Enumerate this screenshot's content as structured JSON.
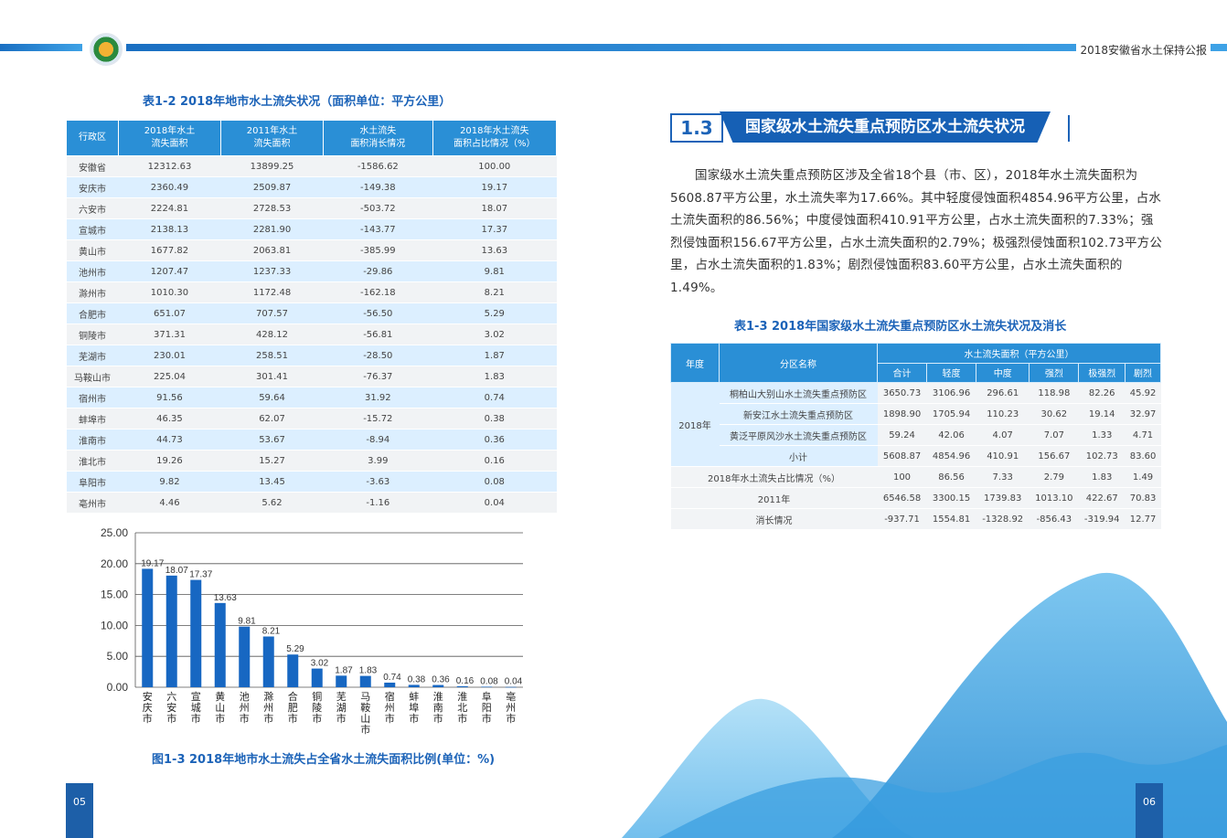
{
  "header": {
    "title": "2018安徽省水土保持公报"
  },
  "pages": {
    "left": "05",
    "right": "06"
  },
  "table_1_2": {
    "caption": "表1-2  2018年地市水土流失状况（面积单位：平方公里）",
    "headers": [
      "行政区",
      "2018年水土\n流失面积",
      "2011年水土\n流失面积",
      "水土流失\n面积消长情况",
      "2018年水土流失\n面积占比情况（%）"
    ],
    "rows": [
      [
        "安徽省",
        "12312.63",
        "13899.25",
        "-1586.62",
        "100.00"
      ],
      [
        "安庆市",
        "2360.49",
        "2509.87",
        "-149.38",
        "19.17"
      ],
      [
        "六安市",
        "2224.81",
        "2728.53",
        "-503.72",
        "18.07"
      ],
      [
        "宣城市",
        "2138.13",
        "2281.90",
        "-143.77",
        "17.37"
      ],
      [
        "黄山市",
        "1677.82",
        "2063.81",
        "-385.99",
        "13.63"
      ],
      [
        "池州市",
        "1207.47",
        "1237.33",
        "-29.86",
        "9.81"
      ],
      [
        "滁州市",
        "1010.30",
        "1172.48",
        "-162.18",
        "8.21"
      ],
      [
        "合肥市",
        "651.07",
        "707.57",
        "-56.50",
        "5.29"
      ],
      [
        "铜陵市",
        "371.31",
        "428.12",
        "-56.81",
        "3.02"
      ],
      [
        "芜湖市",
        "230.01",
        "258.51",
        "-28.50",
        "1.87"
      ],
      [
        "马鞍山市",
        "225.04",
        "301.41",
        "-76.37",
        "1.83"
      ],
      [
        "宿州市",
        "91.56",
        "59.64",
        "31.92",
        "0.74"
      ],
      [
        "蚌埠市",
        "46.35",
        "62.07",
        "-15.72",
        "0.38"
      ],
      [
        "淮南市",
        "44.73",
        "53.67",
        "-8.94",
        "0.36"
      ],
      [
        "淮北市",
        "19.26",
        "15.27",
        "3.99",
        "0.16"
      ],
      [
        "阜阳市",
        "9.82",
        "13.45",
        "-3.63",
        "0.08"
      ],
      [
        "亳州市",
        "4.46",
        "5.62",
        "-1.16",
        "0.04"
      ]
    ]
  },
  "chart_data": {
    "type": "bar",
    "title": "图1-3  2018年地市水土流失占全省水土流失面积比例(单位：%)",
    "categories": [
      "安庆市",
      "六安市",
      "宣城市",
      "黄山市",
      "池州市",
      "滁州市",
      "合肥市",
      "铜陵市",
      "芜湖市",
      "马鞍山市",
      "宿州市",
      "蚌埠市",
      "淮南市",
      "淮北市",
      "阜阳市",
      "亳州市"
    ],
    "values": [
      19.17,
      18.07,
      17.37,
      13.63,
      9.81,
      8.21,
      5.29,
      3.02,
      1.87,
      1.83,
      0.74,
      0.38,
      0.36,
      0.16,
      0.08,
      0.04
    ],
    "value_labels": [
      "19.17",
      "18.07",
      "17.37",
      "13.63",
      "9.81",
      "8.21",
      "5.29",
      "3.02",
      "1.87",
      "1.83",
      "0.74",
      "0.38",
      "0.36",
      "0.16",
      "0.08",
      "0.04"
    ],
    "y_ticks": [
      "0.00",
      "5.00",
      "10.00",
      "15.00",
      "20.00",
      "25.00"
    ],
    "ylim": [
      0,
      25
    ],
    "grid": true,
    "bar_color": "#1767c2"
  },
  "section": {
    "number": "1.3",
    "title": "国家级水土流失重点预防区水土流失状况",
    "paragraph": "国家级水土流失重点预防区涉及全省18个县（市、区），2018年水土流失面积为5608.87平方公里，水土流失率为17.66%。其中轻度侵蚀面积4854.96平方公里，占水土流失面积的86.56%；中度侵蚀面积410.91平方公里，占水土流失面积的7.33%；强烈侵蚀面积156.67平方公里，占水土流失面积的2.79%；极强烈侵蚀面积102.73平方公里，占水土流失面积的1.83%；剧烈侵蚀面积83.60平方公里，占水土流失面积的1.49%。"
  },
  "table_1_3": {
    "caption": "表1-3  2018年国家级水土流失重点预防区水土流失状况及消长",
    "header_year": "年度",
    "header_zone": "分区名称",
    "header_group": "水土流失面积（平方公里）",
    "subheaders": [
      "合计",
      "轻度",
      "中度",
      "强烈",
      "极强烈",
      "剧烈"
    ],
    "year_label": "2018年",
    "zone_rows": [
      {
        "name": "桐柏山大别山水土流失重点预防区",
        "values": [
          "3650.73",
          "3106.96",
          "296.61",
          "118.98",
          "82.26",
          "45.92"
        ]
      },
      {
        "name": "新安江水土流失重点预防区",
        "values": [
          "1898.90",
          "1705.94",
          "110.23",
          "30.62",
          "19.14",
          "32.97"
        ]
      },
      {
        "name": "黄泛平原风沙水土流失重点预防区",
        "values": [
          "59.24",
          "42.06",
          "4.07",
          "7.07",
          "1.33",
          "4.71"
        ]
      },
      {
        "name": "小计",
        "values": [
          "5608.87",
          "4854.96",
          "410.91",
          "156.67",
          "102.73",
          "83.60"
        ]
      }
    ],
    "summary_rows": [
      {
        "label": "2018年水土流失占比情况（%）",
        "values": [
          "100",
          "86.56",
          "7.33",
          "2.79",
          "1.83",
          "1.49"
        ]
      },
      {
        "label": "2011年",
        "values": [
          "6546.58",
          "3300.15",
          "1739.83",
          "1013.10",
          "422.67",
          "70.83"
        ]
      },
      {
        "label": "消长情况",
        "values": [
          "-937.71",
          "1554.81",
          "-1328.92",
          "-856.43",
          "-319.94",
          "12.77"
        ]
      }
    ]
  }
}
